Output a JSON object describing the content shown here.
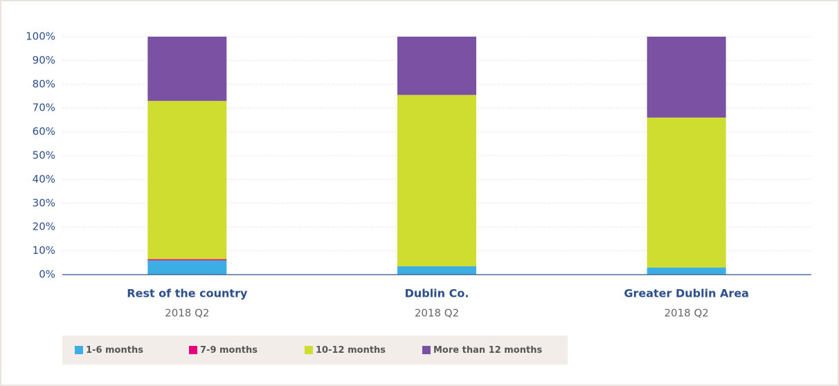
{
  "chart_data": {
    "type": "stacked_bar",
    "categories": [
      "Rest of the country",
      "Dublin Co.",
      "Greater Dublin Area"
    ],
    "category_sublabels": [
      "2018 Q2",
      "2018 Q2",
      "2018 Q2"
    ],
    "series": [
      {
        "name": "1-6 months",
        "color": "#3daee3",
        "values": [
          6,
          3.5,
          3
        ]
      },
      {
        "name": "7-9 months",
        "color": "#e6007e",
        "values": [
          0.5,
          0,
          0
        ]
      },
      {
        "name": "10-12 months",
        "color": "#cfdc30",
        "values": [
          66.5,
          72,
          63
        ]
      },
      {
        "name": "More than 12 months",
        "color": "#7b52a3",
        "values": [
          27,
          24.5,
          34
        ]
      }
    ],
    "ylim": [
      0,
      100
    ],
    "yticks": [
      {
        "value": 0,
        "label": "0%"
      },
      {
        "value": 10,
        "label": "10%"
      },
      {
        "value": 20,
        "label": "20%"
      },
      {
        "value": 30,
        "label": "30%"
      },
      {
        "value": 40,
        "label": "40%"
      },
      {
        "value": 50,
        "label": "50%"
      },
      {
        "value": 60,
        "label": "60%"
      },
      {
        "value": 70,
        "label": "70%"
      },
      {
        "value": 80,
        "label": "80%"
      },
      {
        "value": 90,
        "label": "90%"
      },
      {
        "value": 100,
        "label": "100%"
      }
    ],
    "grid": true,
    "legend": "bottom"
  }
}
